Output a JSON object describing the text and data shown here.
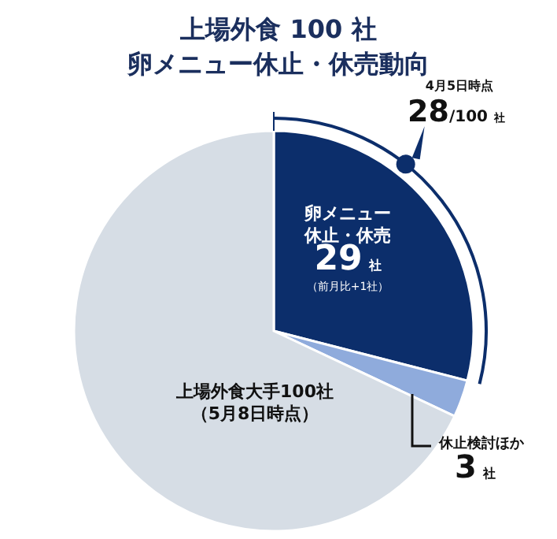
{
  "chart_data": {
    "type": "pie",
    "title": "上場外食 100 社卵メニュー休止・休売動向",
    "categories": [
      "卵メニュー休止・休売",
      "休止検討ほか",
      "上場外食大手100社（5月8日時点）"
    ],
    "values": [
      29,
      3,
      68
    ],
    "colors": [
      "#0c2e6b",
      "#8fabdc",
      "#d6dde5"
    ],
    "value_labels": [
      "29 社",
      "3 社",
      null
    ],
    "annotations": [
      "（前月比+1社）",
      "4月5日時点",
      "28/100 社"
    ]
  }
}
